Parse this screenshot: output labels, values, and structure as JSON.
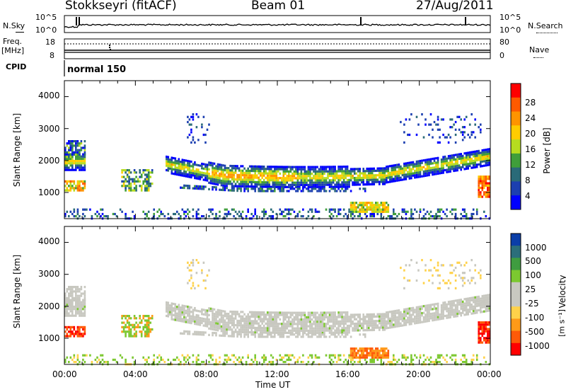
{
  "header": {
    "station": "Stokkseyri (fitACF)",
    "beam": "Beam 01",
    "date": "27/Aug/2011"
  },
  "top_panels": {
    "nsky_label": "N.Sky",
    "nsky_ticks": [
      "10^5",
      "10^0"
    ],
    "nsearch_label": "N.Search",
    "nsearch_ticks": [
      "10^5",
      "10^0"
    ],
    "freq_label": "Freq.",
    "freq_unit": "[MHz]",
    "freq_ticks": [
      "18",
      "8"
    ],
    "nave_label": "Nave",
    "nave_ticks": [
      "80",
      "0"
    ],
    "cpid_label": "CPID",
    "cpid_value": "normal 150"
  },
  "chart_data": [
    {
      "type": "heatmap",
      "name": "power-panel",
      "ylabel": "Slant Range [km]",
      "yticks": [
        "4000",
        "3000",
        "2000",
        "1000"
      ],
      "ylim": [
        180,
        4500
      ],
      "xlim_hours": [
        0,
        24
      ],
      "colorbar_label": "Power [dB]",
      "colorbar_ticks": [
        "28",
        "24",
        "20",
        "16",
        "12",
        "8",
        "4"
      ],
      "colorbar_colors": [
        "#ff0000",
        "#ff5a00",
        "#ff9400",
        "#ffcc00",
        "#b6dc1f",
        "#3f9e3a",
        "#2a6a78",
        "#1c3fb0",
        "#0000ff"
      ]
    },
    {
      "type": "heatmap",
      "name": "velocity-panel",
      "ylabel": "Slant Range [km]",
      "yticks": [
        "4000",
        "3000",
        "2000",
        "1000"
      ],
      "ylim": [
        180,
        4500
      ],
      "xlim_hours": [
        0,
        24
      ],
      "colorbar_label": "Velocity",
      "colorbar_unit": "[m s⁻¹]",
      "colorbar_ticks": [
        "1000",
        "500",
        "100",
        "25",
        "-25",
        "-100",
        "-500",
        "-1000"
      ],
      "colorbar_colors": [
        "#0b3ea8",
        "#2b6e7a",
        "#3f9c40",
        "#7cc830",
        "#c8c8c0",
        "#c8c8c0",
        "#ffd24a",
        "#ff9a18",
        "#ff5a08",
        "#ff0000"
      ]
    }
  ],
  "xaxis": {
    "ticks": [
      "00:00",
      "04:00",
      "08:00",
      "12:00",
      "16:00",
      "20:00",
      "00:00"
    ],
    "label": "Time UT"
  }
}
